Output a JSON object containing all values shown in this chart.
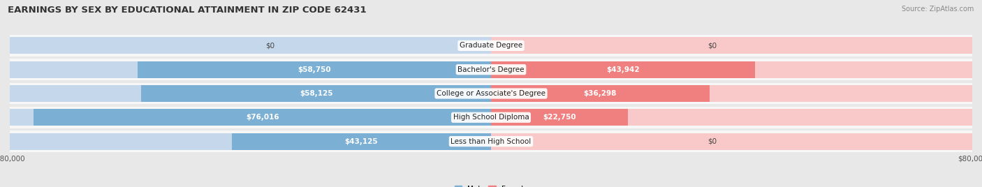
{
  "title": "EARNINGS BY SEX BY EDUCATIONAL ATTAINMENT IN ZIP CODE 62431",
  "source": "Source: ZipAtlas.com",
  "categories": [
    "Less than High School",
    "High School Diploma",
    "College or Associate's Degree",
    "Bachelor's Degree",
    "Graduate Degree"
  ],
  "male_values": [
    43125,
    76016,
    58125,
    58750,
    0
  ],
  "female_values": [
    0,
    22750,
    36298,
    43942,
    0
  ],
  "male_color": "#7bafd4",
  "female_color": "#f08080",
  "male_ghost_color": "#c5d8eb",
  "female_ghost_color": "#f9c9c9",
  "max_val": 80000,
  "bg_color": "#e8e8e8",
  "row_bg": "#f7f7f7",
  "title_fontsize": 9.5,
  "label_fontsize": 7.5,
  "tick_fontsize": 7.5
}
